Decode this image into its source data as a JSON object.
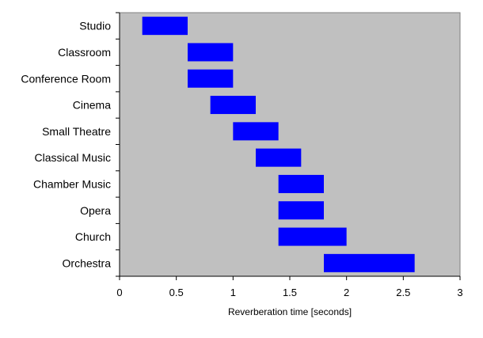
{
  "chart_data": {
    "type": "bar",
    "orientation": "horizontal",
    "range_bars": true,
    "categories": [
      "Studio",
      "Classroom",
      "Conference Room",
      "Cinema",
      "Small Theatre",
      "Classical Music",
      "Chamber Music",
      "Opera",
      "Church",
      "Orchestra"
    ],
    "series": [
      {
        "start": [
          0.2,
          0.6,
          0.6,
          0.8,
          1.0,
          1.2,
          1.4,
          1.4,
          1.4,
          1.8
        ],
        "end": [
          0.6,
          1.0,
          1.0,
          1.2,
          1.4,
          1.6,
          1.8,
          1.8,
          2.0,
          2.6
        ]
      }
    ],
    "xlabel": "Reverberation time [seconds]",
    "xlim": [
      0,
      3
    ],
    "xticks": [
      "0",
      "0.5",
      "1",
      "1.5",
      "2",
      "2.5",
      "3"
    ],
    "xtick_values": [
      0,
      0.5,
      1,
      1.5,
      2,
      2.5,
      3
    ],
    "grid": false,
    "legend": "none",
    "colors": {
      "bar": "#0000ff",
      "plot_background": "#c0c0c0",
      "axis": "#000000"
    }
  }
}
